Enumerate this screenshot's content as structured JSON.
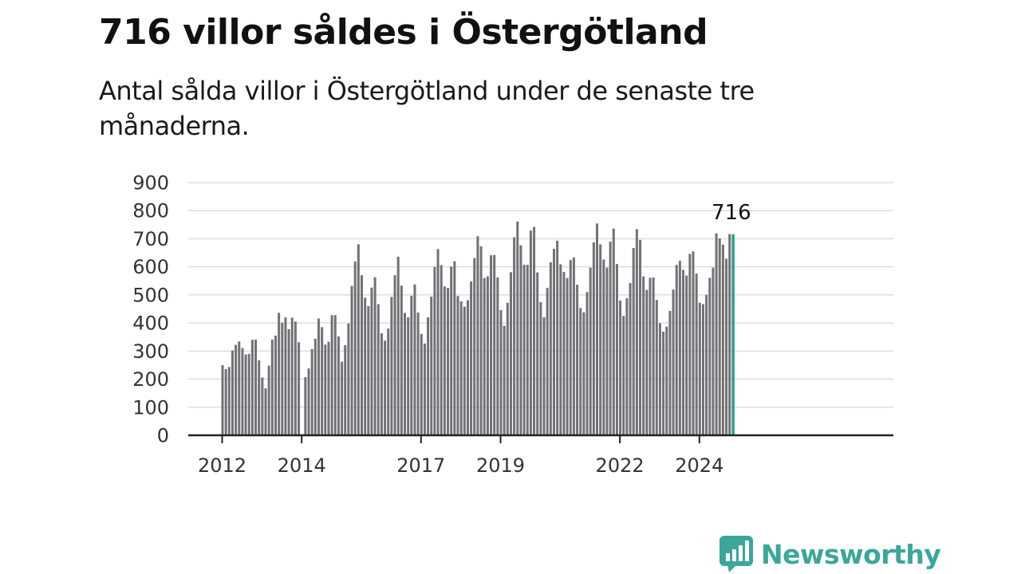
{
  "title": "716 villor såldes i Östergötland",
  "subtitle": "Antal sålda villor i Östergötland under de senaste tre månaderna.",
  "brand": "Newsworthy",
  "colors": {
    "bar": "#717176",
    "highlight": "#2a9d8f",
    "grid": "#dddddd",
    "axis": "#222222",
    "brand": "#3aa79a"
  },
  "chart_data": {
    "type": "bar",
    "title": "716 villor såldes i Östergötland",
    "xlabel": "",
    "ylabel": "",
    "ylim": [
      0,
      900
    ],
    "y_ticks": [
      0,
      100,
      200,
      300,
      400,
      500,
      600,
      700,
      800,
      900
    ],
    "x_ticks": [
      "2012",
      "2014",
      "2017",
      "2019",
      "2022",
      "2024"
    ],
    "grid": true,
    "start": "2012-01",
    "highlight_label": "716",
    "series": [
      {
        "values": [
          250,
          236,
          243,
          302,
          322,
          334,
          311,
          288,
          290,
          340,
          341,
          267,
          206,
          167,
          248,
          341,
          355,
          436,
          401,
          420,
          378,
          419,
          405,
          331,
          0,
          207,
          238,
          307,
          344,
          416,
          385,
          323,
          333,
          428,
          428,
          352,
          262,
          321,
          398,
          532,
          619,
          680,
          570,
          490,
          460,
          526,
          563,
          467,
          363,
          337,
          380,
          493,
          570,
          636,
          533,
          436,
          420,
          497,
          537,
          437,
          361,
          327,
          420,
          494,
          599,
          663,
          606,
          530,
          525,
          601,
          620,
          496,
          477,
          458,
          481,
          548,
          631,
          709,
          673,
          560,
          566,
          641,
          642,
          562,
          446,
          390,
          472,
          581,
          705,
          761,
          677,
          607,
          607,
          729,
          742,
          580,
          474,
          420,
          525,
          616,
          664,
          693,
          609,
          582,
          560,
          624,
          633,
          536,
          453,
          438,
          510,
          597,
          687,
          754,
          680,
          626,
          597,
          690,
          736,
          610,
          480,
          425,
          488,
          542,
          667,
          734,
          696,
          566,
          518,
          561,
          562,
          482,
          399,
          369,
          387,
          443,
          519,
          607,
          621,
          589,
          569,
          646,
          655,
          576,
          472,
          467,
          500,
          561,
          597,
          719,
          701,
          679,
          629,
          717,
          716
        ]
      }
    ]
  }
}
